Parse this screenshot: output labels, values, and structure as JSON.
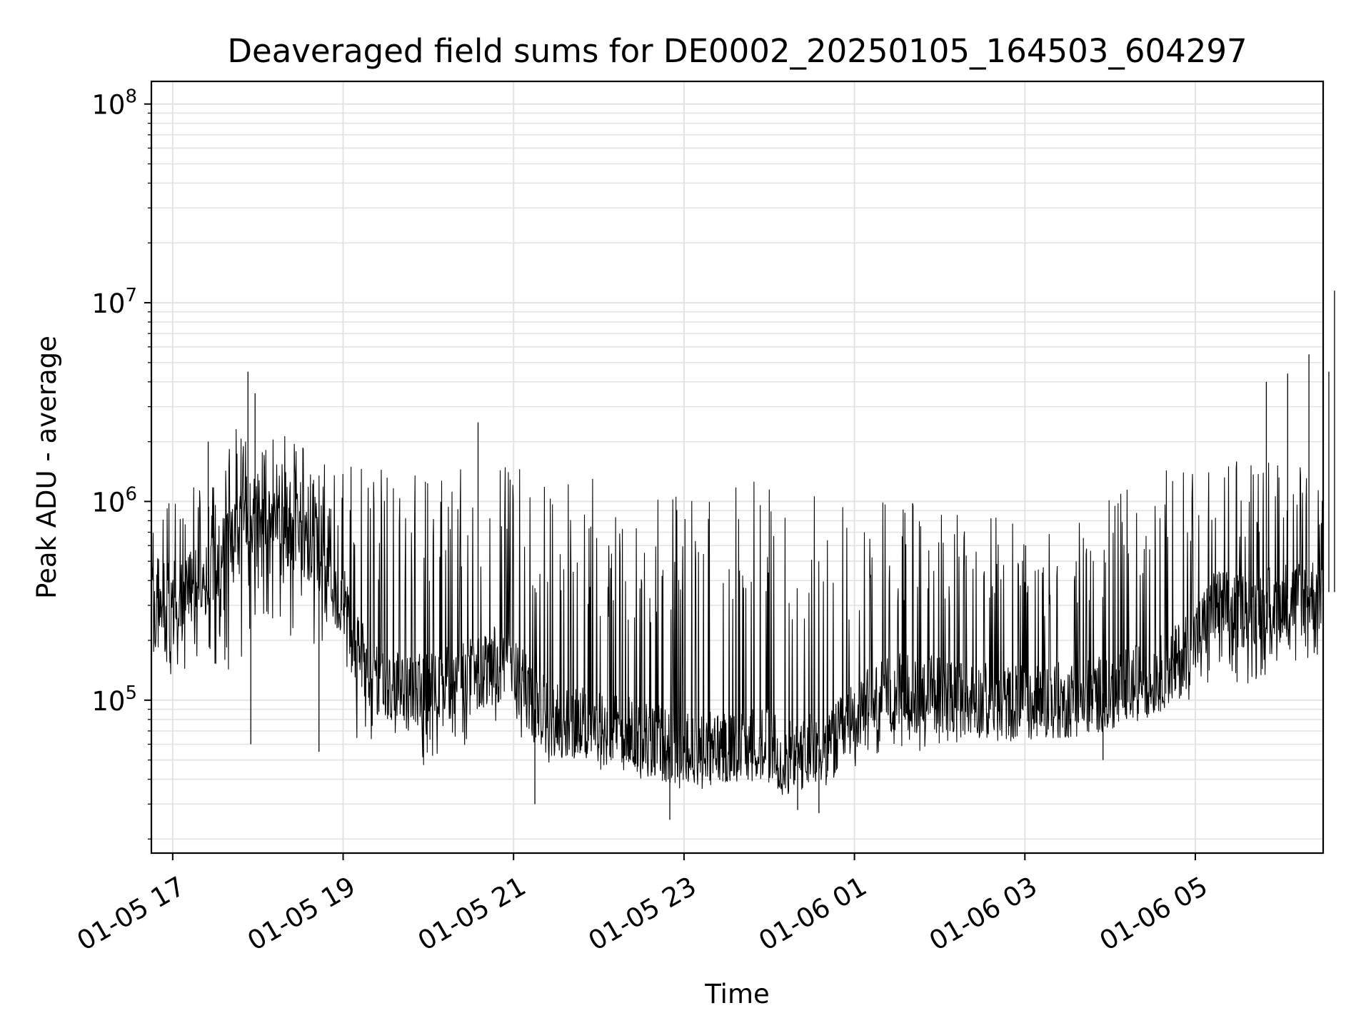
{
  "chart_data": {
    "type": "line",
    "title": "Deaveraged field sums for DE0002_20250105_164503_604297",
    "xlabel": "Time",
    "ylabel": "Peak ADU - average",
    "y_scale": "log",
    "xlim": [
      "2025-01-05 16:45",
      "2025-01-06 06:30"
    ],
    "ylim": [
      17000,
      130000000
    ],
    "x_ticks": [
      "2025-01-05 17:00",
      "2025-01-05 19:00",
      "2025-01-05 21:00",
      "2025-01-05 23:00",
      "2025-01-06 01:00",
      "2025-01-06 03:00",
      "2025-01-06 05:00"
    ],
    "x_tick_labels": [
      "01-05 17",
      "01-05 19",
      "01-05 21",
      "01-05 23",
      "01-06 01",
      "01-06 03",
      "01-06 05"
    ],
    "y_ticks": [
      100000,
      1000000,
      10000000,
      100000000
    ],
    "y_tick_base": "10",
    "y_tick_exponents": [
      "5",
      "6",
      "7",
      "8"
    ],
    "grid": true,
    "line_color": "#000000",
    "series": [
      {
        "x": [
          "2025-01-05 16:45",
          "2025-01-05 17:00",
          "2025-01-05 17:15",
          "2025-01-05 17:30",
          "2025-01-05 17:45",
          "2025-01-05 18:00",
          "2025-01-05 18:15",
          "2025-01-05 18:30",
          "2025-01-05 18:45",
          "2025-01-05 19:00",
          "2025-01-05 19:15",
          "2025-01-05 19:30",
          "2025-01-05 19:45",
          "2025-01-05 20:00",
          "2025-01-05 20:15",
          "2025-01-05 20:30",
          "2025-01-05 20:45",
          "2025-01-05 21:00",
          "2025-01-05 21:15",
          "2025-01-05 21:30",
          "2025-01-05 21:45",
          "2025-01-05 22:00",
          "2025-01-05 22:15",
          "2025-01-05 22:30",
          "2025-01-05 22:45",
          "2025-01-05 23:00",
          "2025-01-05 23:15",
          "2025-01-05 23:30",
          "2025-01-05 23:45",
          "2025-01-06 00:00",
          "2025-01-06 00:15",
          "2025-01-06 00:30",
          "2025-01-06 00:45",
          "2025-01-06 01:00",
          "2025-01-06 01:15",
          "2025-01-06 01:30",
          "2025-01-06 01:45",
          "2025-01-06 02:00",
          "2025-01-06 02:15",
          "2025-01-06 02:30",
          "2025-01-06 02:45",
          "2025-01-06 03:00",
          "2025-01-06 03:15",
          "2025-01-06 03:30",
          "2025-01-06 03:45",
          "2025-01-06 04:00",
          "2025-01-06 04:15",
          "2025-01-06 04:30",
          "2025-01-06 04:45",
          "2025-01-06 05:00",
          "2025-01-06 05:15",
          "2025-01-06 05:30",
          "2025-01-06 05:45",
          "2025-01-06 06:00",
          "2025-01-06 06:15",
          "2025-01-06 06:30"
        ],
        "y_low": [
          180000,
          110000,
          150000,
          140000,
          120000,
          250000,
          220000,
          200000,
          180000,
          100000,
          45000,
          50000,
          48000,
          45000,
          50000,
          60000,
          65000,
          70000,
          55000,
          45000,
          50000,
          55000,
          45000,
          40000,
          35000,
          38000,
          40000,
          38000,
          40000,
          35000,
          32000,
          35000,
          40000,
          45000,
          50000,
          52000,
          55000,
          60000,
          60000,
          65000,
          62000,
          60000,
          62000,
          65000,
          65000,
          70000,
          80000,
          90000,
          100000,
          100000,
          130000,
          110000,
          130000,
          140000,
          150000,
          170000
        ],
        "y_base": [
          350000,
          320000,
          380000,
          450000,
          700000,
          900000,
          800000,
          700000,
          500000,
          300000,
          150000,
          120000,
          110000,
          110000,
          120000,
          130000,
          150000,
          150000,
          90000,
          80000,
          75000,
          70000,
          70000,
          65000,
          60000,
          55000,
          55000,
          60000,
          60000,
          60000,
          50000,
          55000,
          60000,
          80000,
          100000,
          110000,
          110000,
          110000,
          105000,
          100000,
          95000,
          100000,
          100000,
          100000,
          105000,
          110000,
          120000,
          130000,
          150000,
          200000,
          300000,
          280000,
          300000,
          320000,
          330000,
          350000
        ],
        "y_high": [
          900000,
          1000000,
          1200000,
          1300000,
          2500000,
          2300000,
          2300000,
          2000000,
          1600000,
          1600000,
          1500000,
          1500000,
          1450000,
          1400000,
          1500000,
          1600000,
          1550000,
          1500000,
          1400000,
          1300000,
          1350000,
          1300000,
          1200000,
          1150000,
          1200000,
          1200000,
          1200000,
          1250000,
          1300000,
          1200000,
          1100000,
          1100000,
          1100000,
          950000,
          1000000,
          1000000,
          1000000,
          950000,
          900000,
          850000,
          850000,
          800000,
          800000,
          850000,
          900000,
          1100000,
          1300000,
          1400000,
          1600000,
          1700000,
          1700000,
          1650000,
          1600000,
          1650000,
          1600000,
          1500000
        ],
        "spikes": [
          {
            "x": "2025-01-05 17:25",
            "y": 2000000
          },
          {
            "x": "2025-01-05 17:53",
            "y": 4500000
          },
          {
            "x": "2025-01-05 17:58",
            "y": 3500000
          },
          {
            "x": "2025-01-05 20:35",
            "y": 2500000
          },
          {
            "x": "2025-01-06 05:50",
            "y": 4000000
          },
          {
            "x": "2025-01-06 06:05",
            "y": 4400000
          },
          {
            "x": "2025-01-06 06:20",
            "y": 5500000
          },
          {
            "x": "2025-01-06 06:34",
            "y": 4500000
          },
          {
            "x": "2025-01-06 06:38",
            "y": 11500000
          }
        ],
        "dips": [
          {
            "x": "2025-01-05 17:55",
            "y": 60000
          },
          {
            "x": "2025-01-05 18:43",
            "y": 55000
          },
          {
            "x": "2025-01-05 21:15",
            "y": 30000
          },
          {
            "x": "2025-01-05 22:50",
            "y": 25000
          },
          {
            "x": "2025-01-06 00:20",
            "y": 28000
          },
          {
            "x": "2025-01-06 00:35",
            "y": 27000
          },
          {
            "x": "2025-01-06 03:55",
            "y": 50000
          }
        ]
      }
    ]
  }
}
